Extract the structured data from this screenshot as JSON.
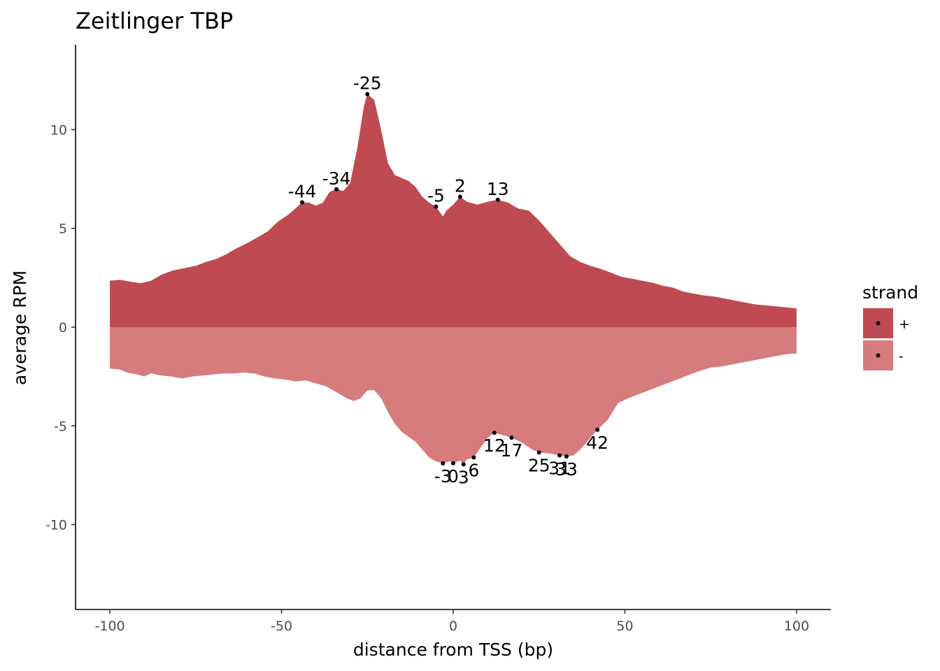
{
  "chart_data": {
    "type": "area",
    "title": "Zeitlinger TBP",
    "xlabel": "distance from TSS (bp)",
    "ylabel": "average RPM",
    "xlim": [
      -110,
      110
    ],
    "ylim": [
      -14.3,
      14.3
    ],
    "x_ticks": [
      {
        "value": -100,
        "label": "-100"
      },
      {
        "value": -50,
        "label": "-50"
      },
      {
        "value": 0,
        "label": "0"
      },
      {
        "value": 50,
        "label": "50"
      },
      {
        "value": 100,
        "label": "100"
      }
    ],
    "y_ticks": [
      {
        "value": 10,
        "label": "10"
      },
      {
        "value": 5,
        "label": "5"
      },
      {
        "value": 0,
        "label": "0"
      },
      {
        "value": -5,
        "label": "-5"
      },
      {
        "value": -10,
        "label": "-10"
      }
    ],
    "grid": false,
    "legend": {
      "title": "strand",
      "position": "right",
      "entries": [
        {
          "label": "+",
          "color": "#c04a51"
        },
        {
          "label": "-",
          "color": "#d67b7e"
        }
      ]
    },
    "series": [
      {
        "name": "+",
        "color": "#c04a51",
        "points": [
          [
            -100,
            2.35
          ],
          [
            -97,
            2.4
          ],
          [
            -94,
            2.3
          ],
          [
            -91,
            2.22
          ],
          [
            -88,
            2.35
          ],
          [
            -85,
            2.65
          ],
          [
            -82,
            2.85
          ],
          [
            -78,
            3.0
          ],
          [
            -75,
            3.1
          ],
          [
            -72,
            3.3
          ],
          [
            -69,
            3.45
          ],
          [
            -66,
            3.7
          ],
          [
            -63,
            4.0
          ],
          [
            -60,
            4.25
          ],
          [
            -57,
            4.55
          ],
          [
            -54,
            4.85
          ],
          [
            -51,
            5.35
          ],
          [
            -48,
            5.7
          ],
          [
            -46,
            6.0
          ],
          [
            -44,
            6.32
          ],
          [
            -42,
            6.3
          ],
          [
            -40,
            6.15
          ],
          [
            -38,
            6.3
          ],
          [
            -36,
            6.85
          ],
          [
            -34,
            6.98
          ],
          [
            -32,
            6.9
          ],
          [
            -30,
            7.3
          ],
          [
            -28,
            9.0
          ],
          [
            -26,
            11.2
          ],
          [
            -25,
            11.8
          ],
          [
            -23,
            11.5
          ],
          [
            -21,
            10.0
          ],
          [
            -19,
            8.3
          ],
          [
            -17,
            7.7
          ],
          [
            -15,
            7.55
          ],
          [
            -13,
            7.4
          ],
          [
            -11,
            7.1
          ],
          [
            -9,
            6.6
          ],
          [
            -7,
            6.3
          ],
          [
            -5,
            6.1
          ],
          [
            -3,
            5.6
          ],
          [
            -2,
            5.9
          ],
          [
            0,
            6.2
          ],
          [
            2,
            6.6
          ],
          [
            4,
            6.35
          ],
          [
            7,
            6.2
          ],
          [
            10,
            6.35
          ],
          [
            13,
            6.45
          ],
          [
            16,
            6.3
          ],
          [
            19,
            6.0
          ],
          [
            22,
            5.9
          ],
          [
            25,
            5.4
          ],
          [
            28,
            4.8
          ],
          [
            31,
            4.2
          ],
          [
            34,
            3.6
          ],
          [
            37,
            3.3
          ],
          [
            40,
            3.1
          ],
          [
            43,
            2.95
          ],
          [
            46,
            2.75
          ],
          [
            49,
            2.55
          ],
          [
            52,
            2.45
          ],
          [
            55,
            2.35
          ],
          [
            58,
            2.25
          ],
          [
            61,
            2.1
          ],
          [
            64,
            2.0
          ],
          [
            67,
            1.8
          ],
          [
            70,
            1.7
          ],
          [
            73,
            1.6
          ],
          [
            76,
            1.55
          ],
          [
            79,
            1.45
          ],
          [
            82,
            1.35
          ],
          [
            85,
            1.25
          ],
          [
            88,
            1.15
          ],
          [
            91,
            1.1
          ],
          [
            94,
            1.05
          ],
          [
            97,
            1.0
          ],
          [
            100,
            0.95
          ]
        ]
      },
      {
        "name": "-",
        "color": "#d67b7e",
        "points": [
          [
            -100,
            -2.1
          ],
          [
            -97,
            -2.15
          ],
          [
            -95,
            -2.3
          ],
          [
            -92,
            -2.4
          ],
          [
            -90,
            -2.5
          ],
          [
            -88,
            -2.35
          ],
          [
            -85,
            -2.45
          ],
          [
            -82,
            -2.5
          ],
          [
            -79,
            -2.6
          ],
          [
            -76,
            -2.5
          ],
          [
            -73,
            -2.45
          ],
          [
            -70,
            -2.4
          ],
          [
            -67,
            -2.35
          ],
          [
            -64,
            -2.35
          ],
          [
            -61,
            -2.3
          ],
          [
            -58,
            -2.35
          ],
          [
            -55,
            -2.5
          ],
          [
            -52,
            -2.6
          ],
          [
            -49,
            -2.65
          ],
          [
            -46,
            -2.75
          ],
          [
            -43,
            -2.7
          ],
          [
            -40,
            -2.85
          ],
          [
            -37,
            -3.0
          ],
          [
            -34,
            -3.3
          ],
          [
            -31,
            -3.6
          ],
          [
            -29,
            -3.75
          ],
          [
            -27,
            -3.6
          ],
          [
            -25,
            -3.2
          ],
          [
            -23,
            -3.2
          ],
          [
            -21,
            -3.6
          ],
          [
            -19,
            -4.3
          ],
          [
            -17,
            -4.9
          ],
          [
            -15,
            -5.3
          ],
          [
            -13,
            -5.55
          ],
          [
            -11,
            -5.8
          ],
          [
            -9,
            -6.2
          ],
          [
            -7,
            -6.6
          ],
          [
            -5,
            -6.8
          ],
          [
            -3,
            -6.9
          ],
          [
            -1,
            -6.8
          ],
          [
            0,
            -6.9
          ],
          [
            2,
            -6.75
          ],
          [
            3,
            -6.95
          ],
          [
            4,
            -6.7
          ],
          [
            6,
            -6.6
          ],
          [
            8,
            -6.1
          ],
          [
            10,
            -5.6
          ],
          [
            12,
            -5.35
          ],
          [
            14,
            -5.45
          ],
          [
            17,
            -5.6
          ],
          [
            20,
            -5.85
          ],
          [
            23,
            -6.2
          ],
          [
            25,
            -6.35
          ],
          [
            28,
            -6.4
          ],
          [
            31,
            -6.5
          ],
          [
            33,
            -6.55
          ],
          [
            35,
            -6.5
          ],
          [
            37,
            -6.2
          ],
          [
            39,
            -5.8
          ],
          [
            42,
            -5.2
          ],
          [
            45,
            -4.7
          ],
          [
            48,
            -3.85
          ],
          [
            51,
            -3.6
          ],
          [
            54,
            -3.4
          ],
          [
            57,
            -3.2
          ],
          [
            60,
            -3.0
          ],
          [
            63,
            -2.8
          ],
          [
            66,
            -2.6
          ],
          [
            69,
            -2.4
          ],
          [
            72,
            -2.2
          ],
          [
            75,
            -2.05
          ],
          [
            78,
            -2.0
          ],
          [
            81,
            -1.9
          ],
          [
            84,
            -1.8
          ],
          [
            87,
            -1.7
          ],
          [
            90,
            -1.6
          ],
          [
            93,
            -1.5
          ],
          [
            96,
            -1.4
          ],
          [
            98,
            -1.35
          ],
          [
            100,
            -1.35
          ]
        ]
      }
    ],
    "peak_labels": [
      {
        "x": -44,
        "y": 6.32,
        "label": "-44",
        "position": "above"
      },
      {
        "x": -34,
        "y": 6.98,
        "label": "-34",
        "position": "above"
      },
      {
        "x": -25,
        "y": 11.8,
        "label": "-25",
        "position": "above"
      },
      {
        "x": -5,
        "y": 6.1,
        "label": "-5",
        "position": "above"
      },
      {
        "x": 2,
        "y": 6.6,
        "label": "2",
        "position": "above"
      },
      {
        "x": 13,
        "y": 6.45,
        "label": "13",
        "position": "above"
      },
      {
        "x": -3,
        "y": -6.9,
        "label": "-3",
        "position": "below"
      },
      {
        "x": 0,
        "y": -6.9,
        "label": "0",
        "position": "below"
      },
      {
        "x": 3,
        "y": -6.95,
        "label": "3",
        "position": "below"
      },
      {
        "x": 6,
        "y": -6.6,
        "label": "6",
        "position": "below"
      },
      {
        "x": 12,
        "y": -5.35,
        "label": "12",
        "position": "below"
      },
      {
        "x": 17,
        "y": -5.6,
        "label": "17",
        "position": "below"
      },
      {
        "x": 25,
        "y": -6.35,
        "label": "25",
        "position": "below"
      },
      {
        "x": 31,
        "y": -6.5,
        "label": "31",
        "position": "below"
      },
      {
        "x": 33,
        "y": -6.55,
        "label": "33",
        "position": "below"
      },
      {
        "x": 42,
        "y": -5.2,
        "label": "42",
        "position": "below"
      }
    ]
  }
}
